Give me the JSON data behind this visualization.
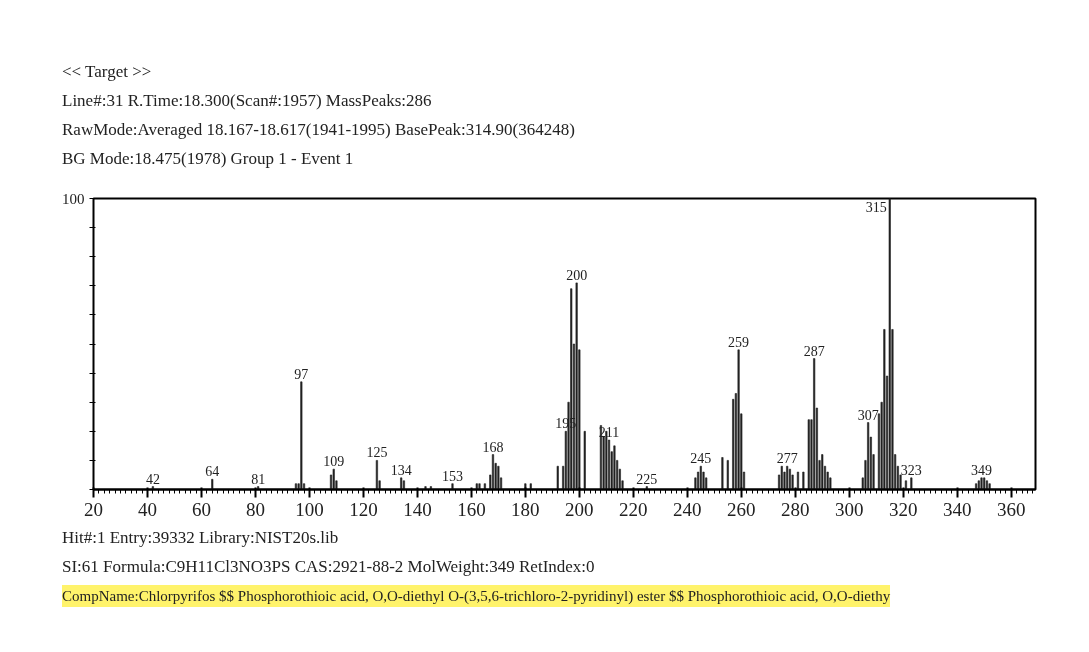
{
  "chart_data": {
    "type": "bar",
    "title": "<< Target >>",
    "subtitle": "Line#:31  R.Time:18.300(Scan#:1957)  MassPeaks:286",
    "annotations": [
      "RawMode:Averaged 18.167-18.617(1941-1995) BasePeak:314.90(364248)",
      "BG Mode:18.475(1978)  Group 1 - Event 1",
      "Hit#:1  Entry:39332  Library:NIST20s.lib",
      "SI:61  Formula:C9H11Cl3NO3PS  CAS:2921-88-2  MolWeight:349  RetIndex:0",
      "CompName:Chlorpyrifos $$ Phosphorothioic acid, O,O-diethyl O-(3,5,6-trichloro-2-pyridinyl) ester $$ Phosphorothioic acid, O,O-diethy",
      {
        "text": "42",
        "x": 42,
        "y": 1
      },
      {
        "text": "64",
        "x": 64,
        "y": 3.5
      },
      {
        "text": "81",
        "x": 81,
        "y": 1
      },
      {
        "text": "97",
        "x": 97,
        "y": 37
      },
      {
        "text": "109",
        "x": 109,
        "y": 7
      },
      {
        "text": "125",
        "x": 125,
        "y": 10
      },
      {
        "text": "134",
        "x": 134,
        "y": 4
      },
      {
        "text": "153",
        "x": 153,
        "y": 2
      },
      {
        "text": "168",
        "x": 168,
        "y": 12
      },
      {
        "text": "195",
        "x": 195,
        "y": 20
      },
      {
        "text": "200",
        "x": 199,
        "y": 71
      },
      {
        "text": "211",
        "x": 211,
        "y": 17
      },
      {
        "text": "225",
        "x": 225,
        "y": 1
      },
      {
        "text": "245",
        "x": 245,
        "y": 8
      },
      {
        "text": "259",
        "x": 259,
        "y": 48
      },
      {
        "text": "277",
        "x": 277,
        "y": 8
      },
      {
        "text": "287",
        "x": 287,
        "y": 45
      },
      {
        "text": "307",
        "x": 307,
        "y": 23
      },
      {
        "text": "315",
        "x": 315,
        "y": 100
      },
      {
        "text": "323",
        "x": 323,
        "y": 4
      },
      {
        "text": "349",
        "x": 349,
        "y": 4
      }
    ],
    "color": "#222222",
    "ylim": [
      0,
      100
    ],
    "yticks": [
      {
        "value": 0,
        "label": null
      },
      {
        "value": 10,
        "label": null
      },
      {
        "value": 20,
        "label": null
      },
      {
        "value": 30,
        "label": null
      },
      {
        "value": 40,
        "label": null
      },
      {
        "value": 50,
        "label": null
      },
      {
        "value": 60,
        "label": null
      },
      {
        "value": 70,
        "label": null
      },
      {
        "value": 80,
        "label": null
      },
      {
        "value": 90,
        "label": null
      },
      100
    ],
    "xlim": [
      20,
      369
    ],
    "xticks": [
      20,
      40,
      60,
      80,
      100,
      120,
      140,
      160,
      180,
      200,
      220,
      240,
      260,
      280,
      300,
      320,
      340,
      360
    ],
    "x": [
      42,
      64,
      81,
      95,
      96,
      97,
      98,
      108,
      109,
      110,
      125,
      126,
      134,
      135,
      143,
      145,
      153,
      162,
      163,
      165,
      167,
      168,
      169,
      170,
      171,
      180,
      182,
      192,
      194,
      195,
      196,
      197,
      198,
      199,
      200,
      202,
      208,
      209,
      210,
      211,
      212,
      213,
      214,
      215,
      216,
      225,
      243,
      244,
      245,
      246,
      247,
      253,
      255,
      257,
      258,
      259,
      260,
      261,
      274,
      275,
      276,
      277,
      278,
      279,
      281,
      283,
      285,
      286,
      287,
      288,
      289,
      290,
      291,
      292,
      293,
      305,
      306,
      307,
      308,
      309,
      311,
      312,
      313,
      314,
      315,
      316,
      317,
      318,
      319,
      321,
      323,
      347,
      348,
      349,
      350,
      351,
      352
    ],
    "values": [
      1,
      3.5,
      1,
      2,
      2,
      37,
      2,
      5,
      7,
      3,
      10,
      3,
      4,
      3,
      1,
      1,
      2,
      2,
      2,
      2,
      5,
      12,
      9,
      8,
      4,
      2,
      2,
      8,
      8,
      20,
      30,
      69,
      50,
      71,
      48,
      20,
      22,
      18,
      20,
      17,
      13,
      15,
      10,
      7,
      3,
      1,
      4,
      6,
      8,
      6,
      4,
      11,
      10,
      31,
      33,
      48,
      26,
      6,
      5,
      8,
      6,
      8,
      7,
      5,
      6,
      6,
      24,
      24,
      45,
      28,
      10,
      12,
      8,
      6,
      4,
      4,
      10,
      23,
      18,
      12,
      26,
      30,
      55,
      39,
      100,
      55,
      12,
      8,
      5,
      3,
      4,
      2,
      3,
      4,
      4,
      3,
      2
    ]
  }
}
